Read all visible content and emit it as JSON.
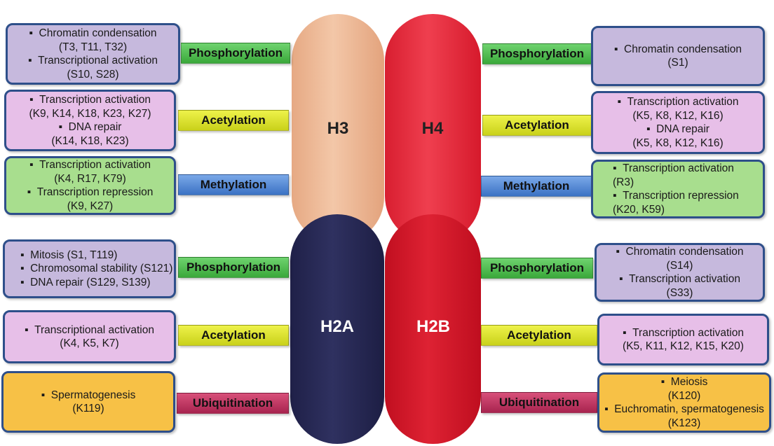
{
  "histones": {
    "h3": {
      "label": "H3",
      "color": "#efb896"
    },
    "h4": {
      "label": "H4",
      "color": "#e8283a"
    },
    "h2a": {
      "label": "H2A",
      "color": "#272852"
    },
    "h2b": {
      "label": "H2B",
      "color": "#d11526"
    }
  },
  "colors": {
    "phosphorylation": "#4cbc4c",
    "acetylation": "#dde22c",
    "methylation": "#4f85d6",
    "ubiquitination": "#be3562",
    "box_border": "#2e4f8a"
  },
  "left_top": [
    {
      "mod": "Phosphorylation",
      "lines": [
        "Chromatin condensation",
        "(T3, T11, T32)",
        "Transcriptional activation",
        "(S10, S28)"
      ]
    },
    {
      "mod": "Acetylation",
      "lines": [
        "Transcription activation",
        "(K9, K14, K18, K23, K27)",
        "DNA repair",
        "(K14, K18, K23)"
      ]
    },
    {
      "mod": "Methylation",
      "lines": [
        "Transcription activation",
        "(K4, R17, K79)",
        "Transcription repression",
        "(K9, K27)"
      ]
    }
  ],
  "right_top": [
    {
      "mod": "Phosphorylation",
      "lines": [
        "Chromatin condensation",
        "(S1)"
      ]
    },
    {
      "mod": "Acetylation",
      "lines": [
        "Transcription activation",
        "(K5, K8, K12, K16)",
        "DNA repair",
        "(K5, K8, K12, K16)"
      ]
    },
    {
      "mod": "Methylation",
      "lines": [
        "Transcription activation",
        "(R3)",
        "Transcription repression",
        "(K20, K59)"
      ]
    }
  ],
  "left_bottom": [
    {
      "mod": "Phosphorylation",
      "lines": [
        "Mitosis (S1, T119)",
        "Chromosomal stability (S121)",
        "DNA repair (S129, S139)"
      ]
    },
    {
      "mod": "Acetylation",
      "lines": [
        "Transcriptional activation",
        "(K4, K5, K7)"
      ]
    },
    {
      "mod": "Ubiquitination",
      "lines": [
        "Spermatogenesis",
        "(K119)"
      ]
    }
  ],
  "right_bottom": [
    {
      "mod": "Phosphorylation",
      "lines": [
        "Chromatin condensation",
        "(S14)",
        "Transcription activation",
        "(S33)"
      ]
    },
    {
      "mod": "Acetylation",
      "lines": [
        "Transcription activation",
        "(K5, K11, K12, K15, K20)"
      ]
    },
    {
      "mod": "Ubiquitination",
      "lines": [
        "Meiosis",
        "(K120)",
        "Euchromatin, spermatogenesis",
        "(K123)"
      ]
    }
  ]
}
